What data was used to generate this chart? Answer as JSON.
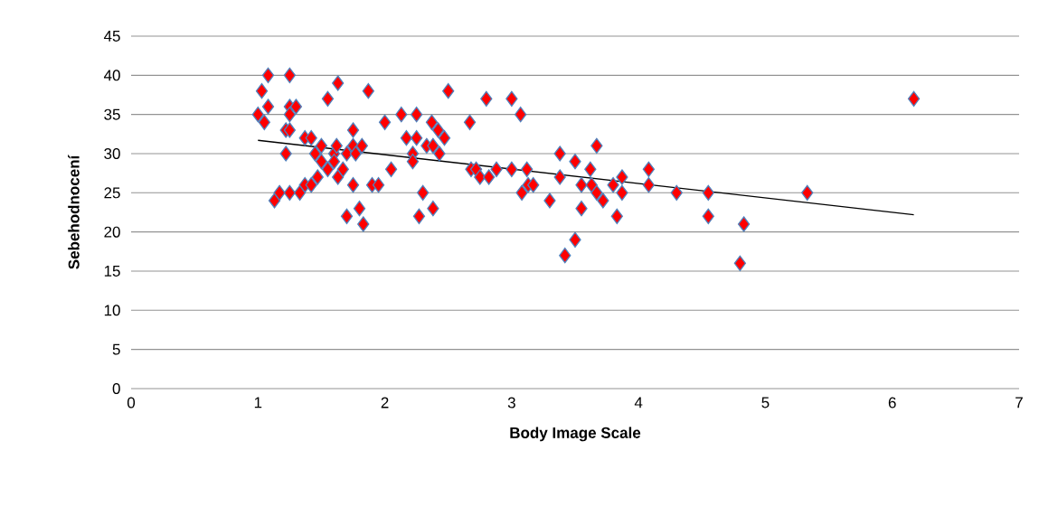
{
  "chart_data": {
    "type": "scatter",
    "xlabel": "Body Image Scale",
    "ylabel": "Sebehodnocení",
    "xlim": [
      0,
      7
    ],
    "xticks": [
      0,
      1,
      2,
      3,
      4,
      5,
      6,
      7
    ],
    "ylim": [
      0,
      45
    ],
    "yticks": [
      0,
      5,
      10,
      15,
      20,
      25,
      30,
      35,
      40,
      45
    ],
    "grid": "y",
    "marker": "diamond",
    "series": [
      {
        "color": "#ff0000",
        "x": [
          1.0,
          1.03,
          1.05,
          1.08,
          1.08,
          1.13,
          1.17,
          1.22,
          1.22,
          1.25,
          1.25,
          1.25,
          1.25,
          1.25,
          1.3,
          1.33,
          1.37,
          1.37,
          1.42,
          1.42,
          1.45,
          1.47,
          1.5,
          1.5,
          1.55,
          1.55,
          1.6,
          1.6,
          1.62,
          1.63,
          1.63,
          1.67,
          1.7,
          1.7,
          1.75,
          1.75,
          1.75,
          1.77,
          1.8,
          1.82,
          1.83,
          1.87,
          1.9,
          1.95,
          2.0,
          2.05,
          2.13,
          2.17,
          2.22,
          2.22,
          2.25,
          2.25,
          2.27,
          2.3,
          2.33,
          2.37,
          2.38,
          2.38,
          2.42,
          2.43,
          2.47,
          2.5,
          2.67,
          2.68,
          2.72,
          2.75,
          2.8,
          2.82,
          2.88,
          3.0,
          3.0,
          3.07,
          3.08,
          3.12,
          3.13,
          3.17,
          3.3,
          3.38,
          3.38,
          3.42,
          3.5,
          3.5,
          3.55,
          3.55,
          3.62,
          3.63,
          3.67,
          3.67,
          3.72,
          3.8,
          3.83,
          3.87,
          3.87,
          4.08,
          4.08,
          4.3,
          4.55,
          4.55,
          4.8,
          4.83,
          5.33,
          6.17
        ],
        "values": [
          35,
          38,
          34,
          36,
          40,
          24,
          25,
          30,
          33,
          40,
          36,
          35,
          33,
          25,
          36,
          25,
          26,
          32,
          32,
          26,
          30,
          27,
          31,
          29,
          37,
          28,
          30,
          29,
          31,
          39,
          27,
          28,
          30,
          22,
          33,
          31,
          26,
          30,
          23,
          31,
          21,
          38,
          26,
          26,
          34,
          28,
          35,
          32,
          30,
          29,
          35,
          32,
          22,
          25,
          31,
          34,
          31,
          23,
          33,
          30,
          32,
          38,
          34,
          28,
          28,
          27,
          37,
          27,
          28,
          37,
          28,
          35,
          25,
          28,
          26,
          26,
          24,
          30,
          27,
          17,
          29,
          19,
          26,
          23,
          28,
          26,
          31,
          25,
          24,
          26,
          22,
          27,
          25,
          28,
          26,
          25,
          25,
          22,
          16,
          21,
          25,
          37
        ]
      },
      {
        "type": "line",
        "marker": "none",
        "color": "#000000",
        "x": [
          1.0,
          6.17
        ],
        "values": [
          31.7,
          22.2
        ]
      }
    ]
  }
}
